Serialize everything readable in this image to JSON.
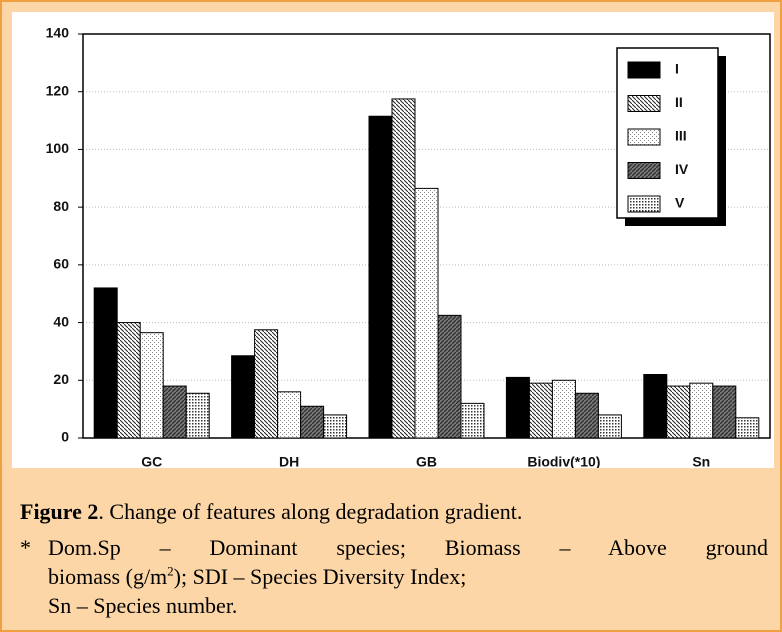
{
  "chart_data": {
    "type": "bar",
    "categories": [
      "GC",
      "DH",
      "GB",
      "Biodiv(*10)",
      "Sn"
    ],
    "series": [
      {
        "name": "I",
        "color": "#000000",
        "pattern": "solid",
        "values": [
          52,
          28.5,
          111.5,
          21,
          22
        ]
      },
      {
        "name": "II",
        "color": "#222222",
        "pattern": "hatch",
        "values": [
          40,
          37.5,
          117.5,
          19,
          18
        ]
      },
      {
        "name": "III",
        "color": "#888888",
        "pattern": "dots",
        "values": [
          36.5,
          16,
          86.5,
          20,
          19
        ]
      },
      {
        "name": "IV",
        "color": "#333333",
        "pattern": "dense-hatch",
        "values": [
          18,
          11,
          42.5,
          15.5,
          18
        ]
      },
      {
        "name": "V",
        "color": "#333333",
        "pattern": "fine-dots",
        "values": [
          15.5,
          8,
          12,
          8,
          7
        ]
      }
    ],
    "ylim": [
      0,
      140
    ],
    "yticks": [
      0,
      20,
      40,
      60,
      80,
      100,
      120,
      140
    ],
    "grid": true,
    "legend": "upper right"
  },
  "caption": {
    "label": "Figure 2",
    "text": ". Change of features along degradation gradient."
  },
  "footnote": {
    "marker": "*",
    "parts": [
      "Dom.Sp – Dominant species; Biomass – Above ground",
      "biomass (g/m",
      "2",
      "); SDI – Species Diversity Index;",
      "Sn – Species number."
    ]
  }
}
